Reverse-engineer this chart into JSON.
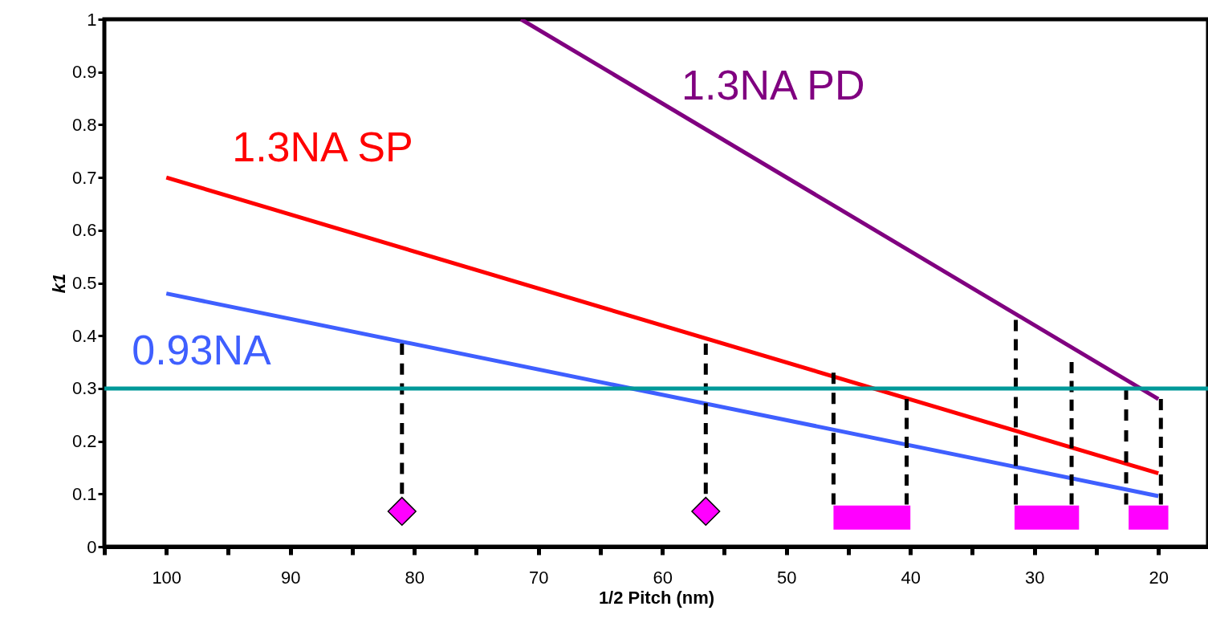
{
  "chart_data": {
    "type": "line",
    "xlabel": "1/2 Pitch (nm)",
    "ylabel": "k1",
    "xlim": [
      105,
      16
    ],
    "ylim": [
      0,
      1
    ],
    "xticks": [
      {
        "value": 105,
        "label": null
      },
      100,
      {
        "value": 95,
        "label": null
      },
      90,
      {
        "value": 85,
        "label": null
      },
      80,
      {
        "value": 75,
        "label": null
      },
      70,
      {
        "value": 65,
        "label": null
      },
      60,
      {
        "value": 55,
        "label": null
      },
      50,
      {
        "value": 45,
        "label": null
      },
      40,
      {
        "value": 35,
        "label": null
      },
      30,
      {
        "value": 25,
        "label": null
      },
      20
    ],
    "yticks": [
      0,
      0.1,
      0.2,
      0.3,
      0.4,
      0.5,
      0.6,
      0.7,
      0.8,
      0.9,
      1
    ],
    "grid": false,
    "legend": false,
    "ref_lines": [
      {
        "axis": "y",
        "value": 0.3,
        "color": "#009999"
      }
    ],
    "series": [
      {
        "name": "0.93NA",
        "color": "#3f5fff",
        "x": [
          100,
          20
        ],
        "values": [
          0.48,
          0.096
        ]
      },
      {
        "name": "1.3NA SP",
        "color": "#ff0000",
        "x": [
          100,
          20
        ],
        "values": [
          0.7,
          0.139
        ]
      },
      {
        "name": "1.3NA PD",
        "color": "#800080",
        "x": [
          71.4,
          20
        ],
        "values": [
          1.0,
          0.28
        ]
      },
      {
        "type": "line",
        "line_style": "dashed",
        "color": "#000000",
        "x": [
          81,
          81
        ],
        "values": [
          0.1,
          0.385
        ]
      },
      {
        "type": "line",
        "line_style": "dashed",
        "color": "#000000",
        "x": [
          56.5,
          56.5
        ],
        "values": [
          0.1,
          0.385
        ]
      },
      {
        "type": "line",
        "line_style": "dashed",
        "color": "#000000",
        "x": [
          46.2,
          46.2
        ],
        "values": [
          0.08,
          0.33
        ]
      },
      {
        "type": "line",
        "line_style": "dashed",
        "color": "#000000",
        "x": [
          40.3,
          40.3
        ],
        "values": [
          0.08,
          0.28
        ]
      },
      {
        "type": "line",
        "line_style": "dashed",
        "color": "#000000",
        "x": [
          31.5,
          31.5
        ],
        "values": [
          0.08,
          0.43
        ]
      },
      {
        "type": "line",
        "line_style": "dashed",
        "color": "#000000",
        "x": [
          27,
          27
        ],
        "values": [
          0.08,
          0.35
        ]
      },
      {
        "type": "line",
        "line_style": "dashed",
        "color": "#000000",
        "x": [
          22.6,
          22.6
        ],
        "values": [
          0.08,
          0.3
        ]
      },
      {
        "type": "line",
        "line_style": "dashed",
        "color": "#000000",
        "x": [
          19.8,
          19.8
        ],
        "values": [
          0.08,
          0.28
        ]
      },
      {
        "type": "scatter",
        "marker": "diamond",
        "color": "#ff00ff",
        "x": [
          81,
          56.5
        ],
        "values": [
          0.067,
          0.067
        ]
      },
      {
        "type": "line",
        "color": "#ff00ff",
        "x": [
          46.2,
          40
        ],
        "values": [
          0.055,
          0.055
        ]
      },
      {
        "type": "line",
        "color": "#ff00ff",
        "x": [
          31.6,
          26.4
        ],
        "values": [
          0.055,
          0.055
        ]
      },
      {
        "type": "line",
        "color": "#ff00ff",
        "x": [
          22.4,
          19.2
        ],
        "values": [
          0.055,
          0.055
        ]
      }
    ]
  }
}
